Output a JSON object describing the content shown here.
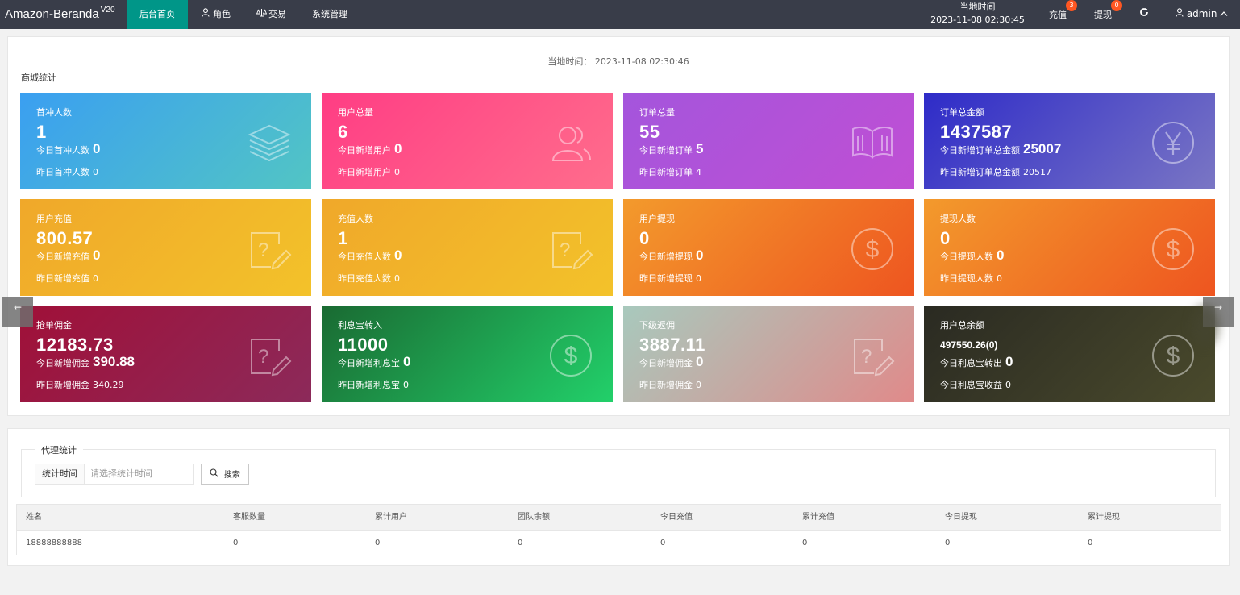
{
  "topbar": {
    "brand": "Amazon-Beranda",
    "version": "V20",
    "nav": [
      {
        "label": "后台首页",
        "icon": ""
      },
      {
        "label": "角色",
        "icon": "user-icon"
      },
      {
        "label": "交易",
        "icon": "scales-icon"
      },
      {
        "label": "系统管理",
        "icon": ""
      }
    ],
    "clock_label": "当地时间",
    "clock_value": "2023-11-08 02:30:45",
    "recharge_label": "充值",
    "recharge_badge": "3",
    "withdraw_label": "提现",
    "withdraw_badge": "0",
    "refresh_icon": "refresh-icon",
    "user_label": "admin"
  },
  "overview": {
    "local_time": "当地时间： 2023-11-08 02:30:46",
    "section_title": "商城统计",
    "cards": [
      {
        "label": "首冲人数",
        "value": "1",
        "line1_label": "今日首冲人数",
        "line1_value": "0",
        "line2_label": "昨日首冲人数",
        "line2_value": "0",
        "icon": "layers-icon",
        "gradient": [
          "#3a9ff1",
          "#52c5c4"
        ]
      },
      {
        "label": "用户总量",
        "value": "6",
        "line1_label": "今日新增用户",
        "line1_value": "0",
        "line2_label": "昨日新增用户",
        "line2_value": "0",
        "icon": "users-icon",
        "gradient": [
          "#ff3d84",
          "#ff6d8c"
        ]
      },
      {
        "label": "订单总量",
        "value": "55",
        "line1_label": "今日新增订单",
        "line1_value": "5",
        "line2_label": "昨日新增订单",
        "line2_value": "4",
        "icon": "book-icon",
        "gradient": [
          "#a455dc",
          "#c04fd4"
        ]
      },
      {
        "label": "订单总金额",
        "value": "1437587",
        "line1_label": "今日新增订单总金额",
        "line1_value": "25007",
        "line2_label": "昨日新增订单总金额",
        "line2_value": "20517",
        "icon": "yen-icon",
        "gradient": [
          "#2e2bc8",
          "#7a76c4"
        ]
      },
      {
        "label": "用户充值",
        "value": "800.57",
        "line1_label": "今日新增充值",
        "line1_value": "0",
        "line2_label": "昨日新增充值",
        "line2_value": "0",
        "icon": "edit-icon",
        "gradient": [
          "#f0a82a",
          "#f3c22a"
        ]
      },
      {
        "label": "充值人数",
        "value": "1",
        "line1_label": "今日充值人数",
        "line1_value": "0",
        "line2_label": "昨日充值人数",
        "line2_value": "0",
        "icon": "edit-icon",
        "gradient": [
          "#f0a82a",
          "#f3c22a"
        ]
      },
      {
        "label": "用户提现",
        "value": "0",
        "line1_label": "今日新增提现",
        "line1_value": "0",
        "line2_label": "昨日新增提现",
        "line2_value": "0",
        "icon": "dollar-icon",
        "gradient": [
          "#f39a2c",
          "#ee5520"
        ]
      },
      {
        "label": "提现人数",
        "value": "0",
        "line1_label": "今日提现人数",
        "line1_value": "0",
        "line2_label": "昨日提现人数",
        "line2_value": "0",
        "icon": "dollar-icon",
        "gradient": [
          "#f39a2c",
          "#ee5520"
        ]
      },
      {
        "label": "抢单佣金",
        "value": "12183.73",
        "line1_label": "今日新增佣金",
        "line1_value": "390.88",
        "line2_label": "昨日新增佣金",
        "line2_value": "340.29",
        "icon": "edit-icon",
        "gradient": [
          "#a01038",
          "#8c2a5a"
        ]
      },
      {
        "label": "利息宝转入",
        "value": "11000",
        "line1_label": "今日新增利息宝",
        "line1_value": "0",
        "line2_label": "昨日新增利息宝",
        "line2_value": "0",
        "icon": "dollar-icon",
        "gradient": [
          "#1a6a32",
          "#22d06a"
        ]
      },
      {
        "label": "下级返佣",
        "value": "3887.11",
        "line1_label": "今日新增佣金",
        "line1_value": "0",
        "line2_label": "昨日新增佣金",
        "line2_value": "0",
        "icon": "edit-icon",
        "gradient": [
          "#a8c9bd",
          "#e08a8a"
        ]
      },
      {
        "label": "用户总余额",
        "value": "497550.26(0)",
        "line1_label": "今日利息宝转出",
        "line1_value": "0",
        "line2_label": "今日利息宝收益",
        "line2_value": "0",
        "icon": "dollar-icon",
        "gradient": [
          "#2a2a22",
          "#4a4a2c"
        ]
      }
    ],
    "prev_arrow": "←",
    "next_arrow": "→"
  },
  "agent": {
    "legend": "代理统计",
    "filter_label": "统计时间",
    "filter_placeholder": "请选择统计时间",
    "search_label": "搜索",
    "columns": [
      "姓名",
      "客服数量",
      "累计用户",
      "团队余额",
      "今日充值",
      "累计充值",
      "今日提现",
      "累计提现"
    ],
    "rows": [
      [
        "18888888888",
        "0",
        "0",
        "0",
        "0",
        "0",
        "0",
        "0"
      ]
    ]
  }
}
